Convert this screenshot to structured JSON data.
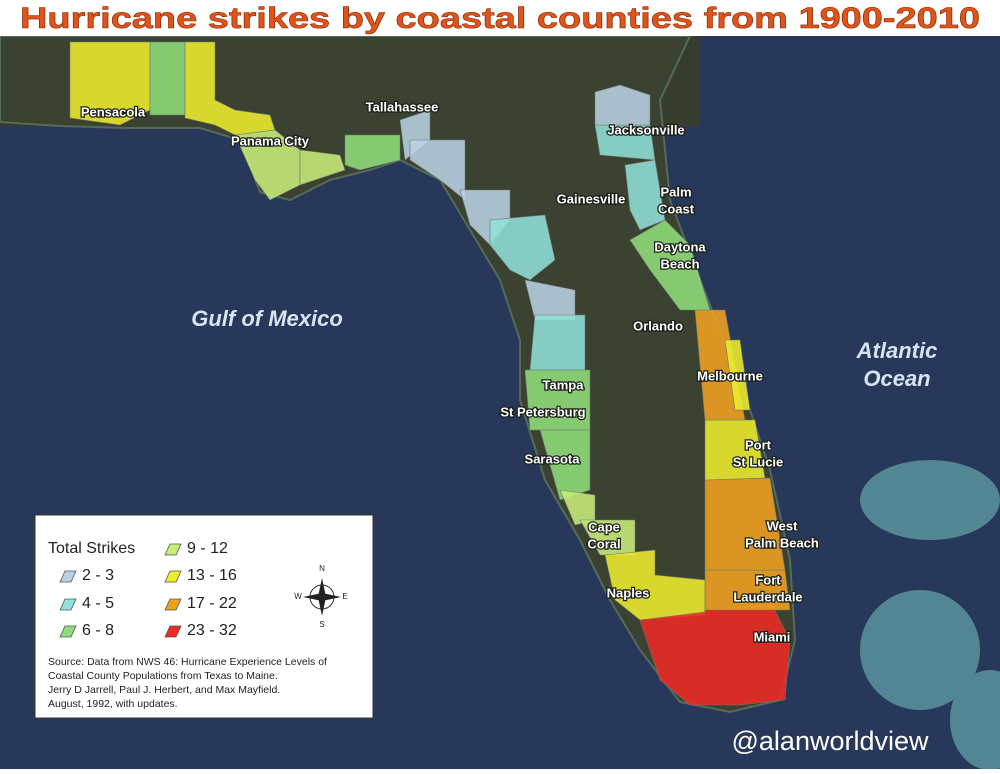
{
  "title": "Hurricane strikes by coastal counties from 1900-2010",
  "water_labels": [
    {
      "lines": [
        "Gulf of Mexico"
      ]
    },
    {
      "lines": [
        "Atlantic",
        "Ocean"
      ]
    }
  ],
  "cities": [
    {
      "lines": [
        "Pensacola"
      ]
    },
    {
      "lines": [
        "Tallahassee"
      ]
    },
    {
      "lines": [
        "Jacksonville"
      ]
    },
    {
      "lines": [
        "Panama City"
      ]
    },
    {
      "lines": [
        "Gainesville"
      ]
    },
    {
      "lines": [
        "Palm",
        "Coast"
      ]
    },
    {
      "lines": [
        "Daytona",
        "Beach"
      ]
    },
    {
      "lines": [
        "Orlando"
      ]
    },
    {
      "lines": [
        "Melbourne"
      ]
    },
    {
      "lines": [
        "Tampa"
      ]
    },
    {
      "lines": [
        "St Petersburg"
      ]
    },
    {
      "lines": [
        "Sarasota"
      ]
    },
    {
      "lines": [
        "Port",
        "St Lucie"
      ]
    },
    {
      "lines": [
        "West",
        "Palm Beach"
      ]
    },
    {
      "lines": [
        "Cape",
        "Coral"
      ]
    },
    {
      "lines": [
        "Naples"
      ]
    },
    {
      "lines": [
        "Fort",
        "Lauderdale"
      ]
    },
    {
      "lines": [
        "Miami"
      ]
    }
  ],
  "legend": {
    "title": "Total Strikes",
    "items": [
      {
        "label": "2 - 3",
        "color": "#b9d0e4"
      },
      {
        "label": "4 - 5",
        "color": "#8fe0d8"
      },
      {
        "label": "6 - 8",
        "color": "#8fdc7a"
      },
      {
        "label": "9 - 12",
        "color": "#c8ec7a"
      },
      {
        "label": "13 - 16",
        "color": "#eeec2c"
      },
      {
        "label": "17 - 22",
        "color": "#f0a020"
      },
      {
        "label": "23 - 32",
        "color": "#ee2a24"
      }
    ]
  },
  "compass": [
    "N",
    "E",
    "S",
    "W"
  ],
  "source": [
    "Source: Data from NWS 46: Hurricane Experience Levels of",
    " Coastal County Populations from Texas to Maine.",
    "Jerry D Jarrell, Paul J. Herbert, and Max Mayfield.",
    "August, 1992, with updates."
  ],
  "watermark": "@alanworldview"
}
